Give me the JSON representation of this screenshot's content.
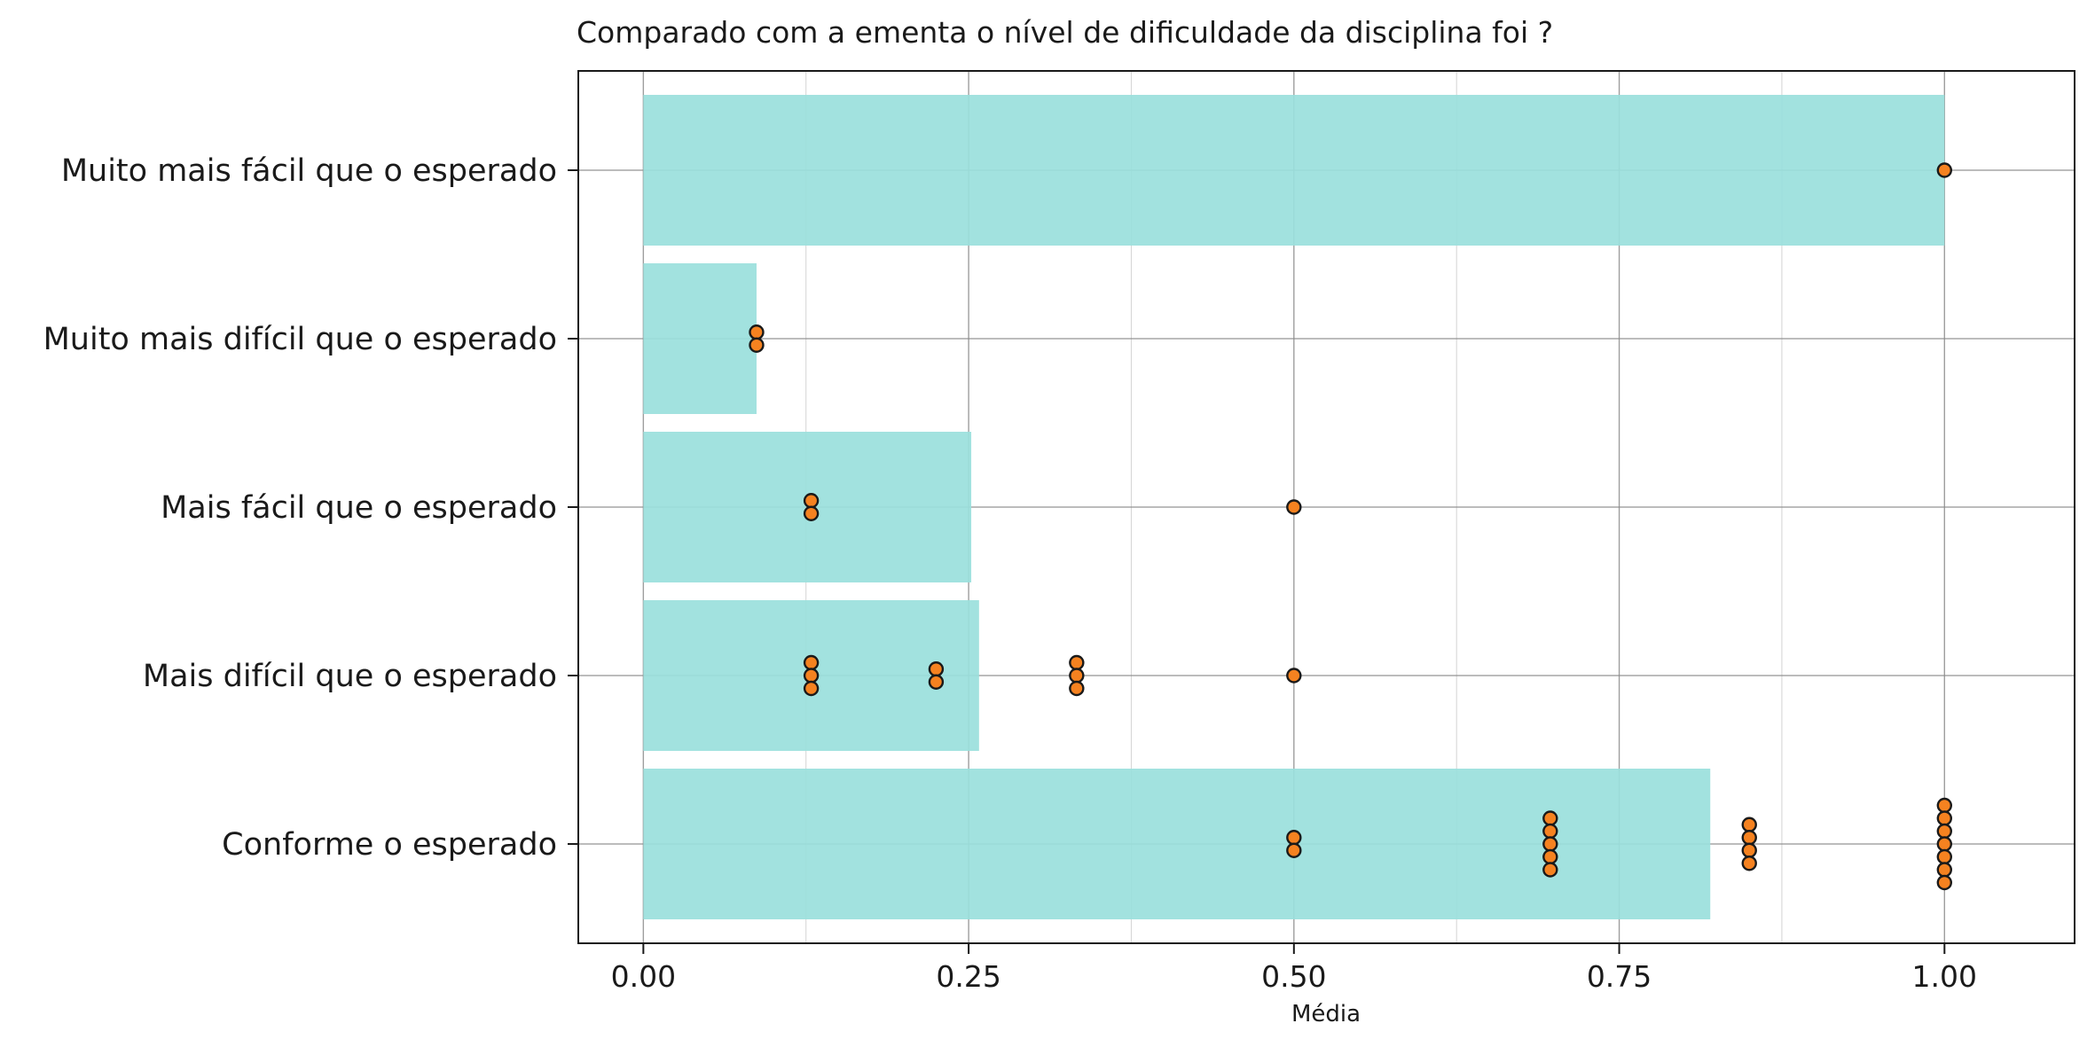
{
  "chart_data": {
    "type": "bar",
    "orientation": "horizontal",
    "title": "Comparado com a ementa  o nível de dificuldade da disciplina foi ?",
    "xlabel": "Média",
    "ylabel": "",
    "xlim": [
      -0.05,
      1.1
    ],
    "xticks": [
      0.0,
      0.25,
      0.5,
      0.75,
      1.0
    ],
    "xtick_labels": [
      "0.00",
      "0.25",
      "0.50",
      "0.75",
      "1.00"
    ],
    "grid": true,
    "categories": [
      "Muito mais fácil que o esperado",
      "Muito mais difícil que o esperado",
      "Mais fácil que o esperado",
      "Mais difícil que o esperado",
      "Conforme o esperado"
    ],
    "values": [
      1.0,
      0.087,
      0.252,
      0.258,
      0.82
    ],
    "points": [
      [
        1.0
      ],
      [
        0.087,
        0.087
      ],
      [
        0.129,
        0.129,
        0.5
      ],
      [
        0.129,
        0.129,
        0.129,
        0.225,
        0.225,
        0.333,
        0.333,
        0.333,
        0.5
      ],
      [
        0.5,
        0.5,
        0.697,
        0.697,
        0.697,
        0.697,
        0.697,
        0.85,
        0.85,
        0.85,
        0.85,
        1.0,
        1.0,
        1.0,
        1.0,
        1.0,
        1.0,
        1.0
      ]
    ],
    "colors": {
      "bar": "#9ae0dc",
      "point_fill": "#f58220",
      "point_edge": "#1a1a1a",
      "grid": "#b0b0b0",
      "frame": "#1a1a1a"
    }
  }
}
